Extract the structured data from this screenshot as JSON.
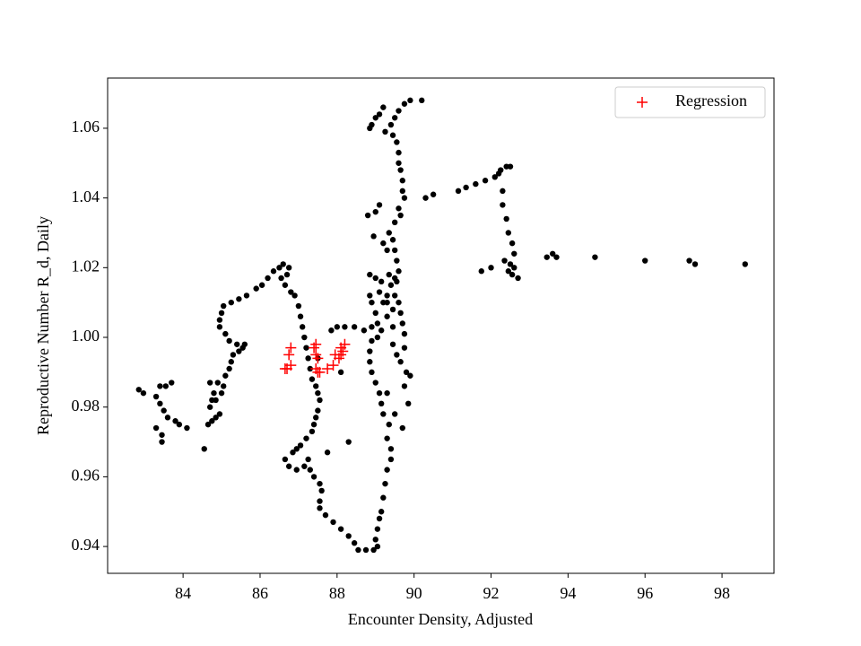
{
  "chart_data": {
    "type": "scatter",
    "xlabel": "Encounter Density, Adjusted",
    "ylabel": "Reproductive Number R_d, Daily",
    "xlim": [
      82.04,
      99.35
    ],
    "ylim": [
      0.9323,
      1.0744
    ],
    "xticks": [
      84,
      86,
      88,
      90,
      92,
      94,
      96,
      98
    ],
    "yticks": [
      0.94,
      0.96,
      0.98,
      {
        "value": 1,
        "label": "1.00"
      },
      1.02,
      1.04,
      1.06
    ],
    "legend": "upper right",
    "series": [
      {
        "color": "#000000",
        "marker": "dot",
        "x": [
          82.85,
          82.97,
          83.3,
          83.4,
          83.5,
          83.6,
          83.8,
          83.9,
          84.1,
          83.3,
          83.45,
          83.45,
          83.4,
          83.55,
          83.7,
          84.55,
          84.65,
          84.75,
          84.85,
          84.95,
          84.7,
          84.75,
          84.8,
          84.7,
          84.9,
          85.05,
          85.0,
          84.85,
          85.1,
          85.2,
          85.25,
          85.3,
          85.45,
          85.55,
          85.6,
          85.4,
          85.2,
          85.1,
          84.95,
          84.95,
          85.0,
          85.05,
          85.25,
          85.45,
          85.65,
          85.9,
          86.05,
          86.2,
          86.35,
          86.5,
          86.6,
          86.75,
          86.7,
          86.55,
          86.65,
          86.8,
          86.9,
          87.0,
          87.05,
          87.1,
          87.15,
          87.2,
          87.25,
          87.3,
          87.35,
          87.45,
          87.5,
          87.55,
          87.5,
          87.45,
          87.4,
          87.35,
          87.2,
          87.05,
          86.95,
          86.85,
          86.65,
          86.75,
          86.95,
          87.15,
          87.25,
          87.3,
          87.4,
          87.55,
          87.6,
          87.55,
          87.55,
          87.7,
          87.9,
          88.1,
          88.3,
          88.45,
          88.55,
          88.75,
          88.95,
          89.05,
          89.0,
          89.05,
          89.1,
          89.15,
          89.2,
          89.25,
          89.3,
          89.4,
          89.4,
          89.3,
          89.35,
          89.2,
          89.15,
          89.1,
          89.0,
          88.9,
          88.85,
          88.85,
          88.9,
          89.05,
          89.15,
          89.05,
          89.0,
          88.9,
          88.85,
          89.1,
          89.3,
          89.5,
          89.6,
          89.65,
          89.7,
          89.75,
          89.75,
          89.65,
          89.8,
          89.75,
          89.45,
          89.3,
          89.2,
          89.4,
          89.55,
          89.6,
          89.55,
          89.5,
          89.45,
          89.35,
          89.5,
          89.65,
          89.6,
          89.75,
          89.7,
          89.7,
          89.65,
          89.6,
          89.6,
          89.55,
          89.45,
          89.25,
          89.4,
          89.5,
          89.6,
          89.75,
          89.9,
          90.2,
          89.2,
          89.1,
          89.0,
          88.9,
          88.85,
          88.8,
          89.0,
          89.1,
          88.95,
          89.2,
          89.3,
          90.3,
          90.5,
          91.15,
          91.35,
          91.6,
          91.85,
          92.1,
          92.25,
          92.4,
          92.5,
          92.2,
          92.3,
          92.3,
          92.4,
          92.45,
          92.55,
          92.6,
          92.5,
          92.45,
          92.55,
          92.7,
          92.6,
          92.35,
          91.75,
          92.0,
          93.45,
          93.6,
          93.7,
          94.7,
          96.0,
          97.15,
          97.3,
          98.6,
          87.85,
          88.0,
          88.2,
          88.45,
          88.7,
          88.9,
          88.3,
          87.75,
          87.5,
          88.1,
          89.3,
          89.5,
          89.7,
          89.85,
          89.9,
          89.55,
          89.45,
          88.85,
          89.0,
          89.15,
          89.35,
          89.5,
          89.3,
          89.45
        ],
        "values": [
          0.985,
          0.984,
          0.983,
          0.981,
          0.979,
          0.977,
          0.976,
          0.975,
          0.974,
          0.974,
          0.972,
          0.97,
          0.986,
          0.986,
          0.987,
          0.968,
          0.975,
          0.976,
          0.977,
          0.978,
          0.98,
          0.982,
          0.984,
          0.987,
          0.987,
          0.986,
          0.984,
          0.982,
          0.989,
          0.991,
          0.993,
          0.995,
          0.996,
          0.997,
          0.998,
          0.998,
          0.999,
          1.001,
          1.003,
          1.005,
          1.007,
          1.009,
          1.01,
          1.011,
          1.012,
          1.014,
          1.015,
          1.017,
          1.019,
          1.02,
          1.021,
          1.02,
          1.018,
          1.017,
          1.015,
          1.013,
          1.012,
          1.009,
          1.006,
          1.003,
          1.0,
          0.997,
          0.994,
          0.991,
          0.988,
          0.986,
          0.984,
          0.982,
          0.979,
          0.977,
          0.975,
          0.973,
          0.971,
          0.969,
          0.968,
          0.967,
          0.965,
          0.963,
          0.962,
          0.963,
          0.965,
          0.962,
          0.96,
          0.958,
          0.956,
          0.953,
          0.951,
          0.949,
          0.947,
          0.945,
          0.943,
          0.941,
          0.939,
          0.939,
          0.939,
          0.94,
          0.942,
          0.945,
          0.948,
          0.95,
          0.954,
          0.958,
          0.962,
          0.965,
          0.968,
          0.971,
          0.975,
          0.978,
          0.981,
          0.984,
          0.987,
          0.99,
          0.993,
          0.996,
          0.999,
          1.0,
          1.002,
          1.004,
          1.007,
          1.01,
          1.012,
          1.013,
          1.012,
          1.012,
          1.01,
          1.007,
          1.004,
          1.001,
          0.997,
          0.993,
          0.99,
          0.986,
          1.003,
          1.006,
          1.01,
          1.015,
          1.016,
          1.019,
          1.022,
          1.025,
          1.028,
          1.03,
          1.033,
          1.035,
          1.037,
          1.04,
          1.042,
          1.045,
          1.048,
          1.05,
          1.053,
          1.056,
          1.058,
          1.059,
          1.061,
          1.063,
          1.065,
          1.067,
          1.068,
          1.068,
          1.066,
          1.064,
          1.063,
          1.061,
          1.06,
          1.035,
          1.036,
          1.038,
          1.029,
          1.027,
          1.025,
          1.04,
          1.041,
          1.042,
          1.043,
          1.044,
          1.045,
          1.046,
          1.048,
          1.049,
          1.049,
          1.047,
          1.042,
          1.038,
          1.034,
          1.03,
          1.027,
          1.024,
          1.021,
          1.019,
          1.018,
          1.017,
          1.02,
          1.022,
          1.019,
          1.02,
          1.023,
          1.024,
          1.023,
          1.023,
          1.022,
          1.022,
          1.021,
          1.021,
          1.002,
          1.003,
          1.003,
          1.003,
          1.002,
          1.003,
          0.97,
          0.967,
          0.994,
          0.99,
          0.984,
          0.978,
          0.974,
          0.981,
          0.989,
          0.995,
          0.998,
          1.018,
          1.017,
          1.016,
          1.018,
          1.017,
          1.01,
          1.008
        ]
      },
      {
        "name": "Regression",
        "color": "#ff0000",
        "marker": "plus",
        "x": [
          86.65,
          86.7,
          86.8,
          86.75,
          86.8,
          87.4,
          87.45,
          87.45,
          87.5,
          87.45,
          87.5,
          87.55,
          87.75,
          87.9,
          87.95,
          88.05,
          88.1,
          88.15,
          88.1,
          88.2
        ],
        "values": [
          0.991,
          0.991,
          0.992,
          0.995,
          0.997,
          0.997,
          0.998,
          0.995,
          0.994,
          0.991,
          0.99,
          0.99,
          0.991,
          0.992,
          0.995,
          0.994,
          0.995,
          0.996,
          0.997,
          0.998
        ]
      }
    ]
  }
}
